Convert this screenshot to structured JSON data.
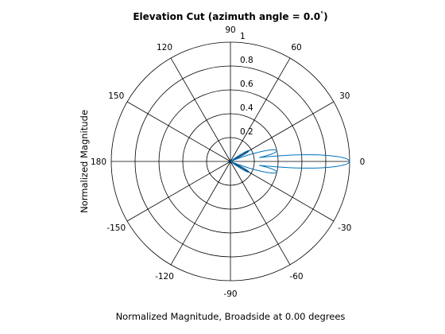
{
  "chart_data": {
    "type": "polar",
    "title": "Elevation Cut (azimuth angle = 0.0°)",
    "title_main": "Elevation Cut (azimuth angle = 0.0",
    "title_degree": "°",
    "title_close": ")",
    "xlabel": "Normalized Magnitude, Broadside at 0.00 degrees",
    "ylabel": "Normalized Magnitude",
    "radial_ticks": [
      "0.2",
      "0.4",
      "0.6",
      "0.8",
      "1"
    ],
    "radial_values": [
      0.2,
      0.4,
      0.6,
      0.8,
      1.0
    ],
    "angle_ticks": [
      "0",
      "30",
      "60",
      "90",
      "120",
      "150",
      "180",
      "-150",
      "-120",
      "-90",
      "-60",
      "-30"
    ],
    "angle_values": [
      0,
      30,
      60,
      90,
      120,
      150,
      180,
      -150,
      -120,
      -90,
      -60,
      -30
    ],
    "rlim": [
      0,
      1
    ],
    "grid": true,
    "series": [
      {
        "color": "#0072BD",
        "lobes": [
          {
            "center_deg": 0,
            "peak": 1.0,
            "half_width_deg": 9
          },
          {
            "center_deg": 13,
            "peak": 0.4,
            "half_width_deg": 9
          },
          {
            "center_deg": -13,
            "peak": 0.4,
            "half_width_deg": 9
          },
          {
            "center_deg": 30,
            "peak": 0.18,
            "half_width_deg": 7
          },
          {
            "center_deg": -30,
            "peak": 0.18,
            "half_width_deg": 7
          }
        ]
      }
    ]
  }
}
